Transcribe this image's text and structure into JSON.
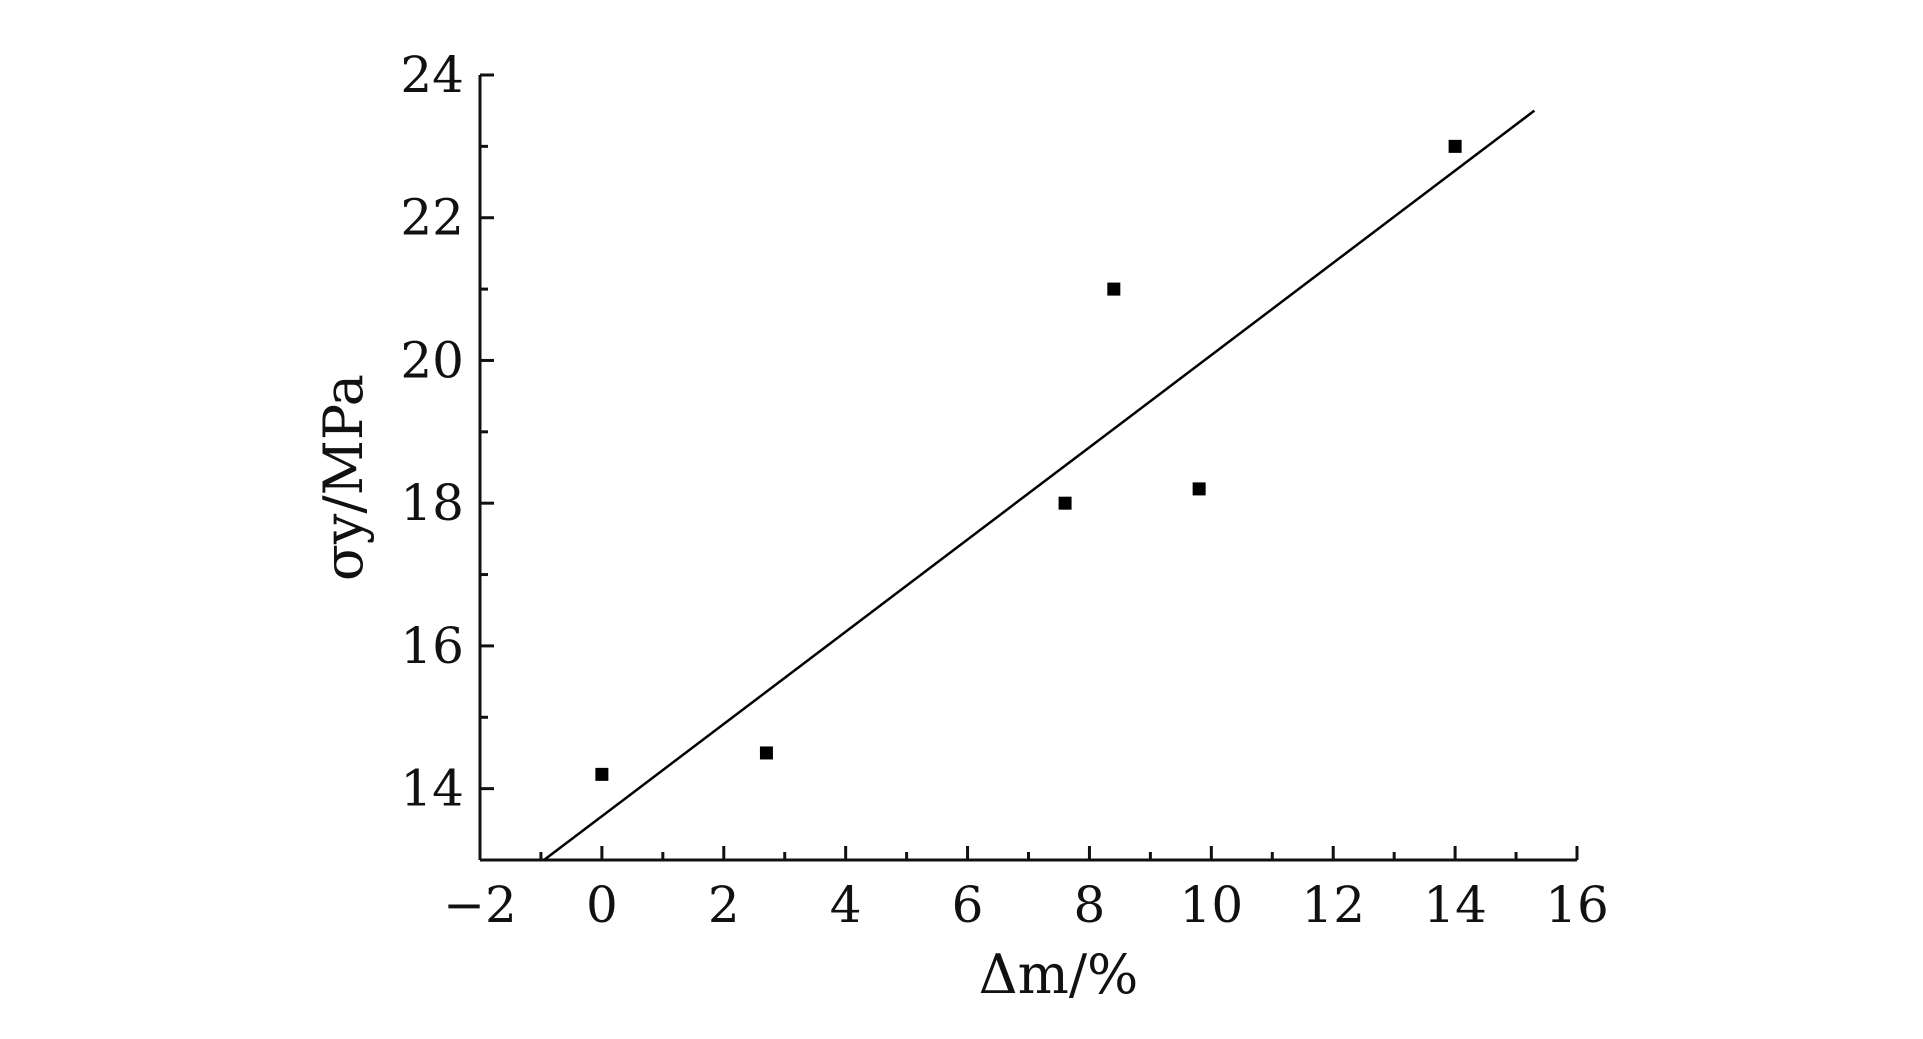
{
  "chart_data": {
    "type": "scatter",
    "xlabel": "Δm/%",
    "ylabel": "σy/MPa",
    "xlim": [
      -2,
      16
    ],
    "ylim": [
      13,
      24
    ],
    "x_ticks": [
      -2,
      0,
      2,
      4,
      6,
      8,
      10,
      12,
      14,
      16
    ],
    "y_ticks": [
      14,
      16,
      18,
      20,
      22,
      24
    ],
    "x_tick_labels": [
      "−2",
      "0",
      "2",
      "4",
      "6",
      "8",
      "10",
      "12",
      "14",
      "16"
    ],
    "y_tick_labels": [
      "14",
      "16",
      "18",
      "20",
      "22",
      "24"
    ],
    "grid": false,
    "legend": "none",
    "series": [
      {
        "type": "scatter",
        "marker": "square",
        "color": "#000000",
        "points": [
          {
            "x": 0.0,
            "y": 14.2
          },
          {
            "x": 2.7,
            "y": 14.5
          },
          {
            "x": 7.6,
            "y": 18.0
          },
          {
            "x": 8.4,
            "y": 21.0
          },
          {
            "x": 9.8,
            "y": 18.2
          },
          {
            "x": 14.0,
            "y": 23.0
          }
        ]
      },
      {
        "type": "line",
        "role": "linear-fit",
        "color": "#000000",
        "points": [
          {
            "x": -0.95,
            "y": 13.0
          },
          {
            "x": 15.3,
            "y": 23.5
          }
        ]
      }
    ]
  }
}
